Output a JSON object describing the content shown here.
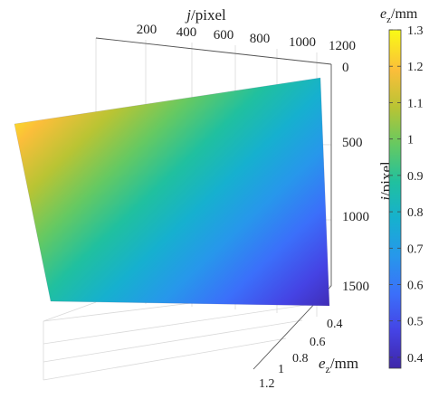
{
  "chart_data": {
    "type": "surface",
    "z_label": "e",
    "z_label_sub": "z",
    "z_label_unit": "/mm",
    "x_axis": {
      "label_var": "j",
      "label_unit": "/pixel",
      "ticks": [
        "200",
        "400",
        "600",
        "800",
        "1000",
        "1200"
      ],
      "range": [
        0,
        1200
      ]
    },
    "y_axis": {
      "label_var": "i",
      "label_unit": "/pixel",
      "ticks": [
        "0",
        "500",
        "1000",
        "1500"
      ],
      "range": [
        0,
        1700
      ]
    },
    "z_axis": {
      "ticks": [
        "0.4",
        "0.6",
        "0.8",
        "1",
        "1.2"
      ],
      "range": [
        0.35,
        1.3
      ]
    },
    "colorbar": {
      "title": "e",
      "title_sub": "z",
      "title_unit": "/mm",
      "ticks": [
        "1.3",
        "1.2",
        "1.1",
        "1",
        "0.9",
        "0.8",
        "0.7",
        "0.6",
        "0.5",
        "0.4"
      ],
      "range": [
        0.37,
        1.3
      ],
      "colormap": "parula"
    },
    "surface_corners": [
      {
        "j": 0,
        "i": 0,
        "e_z": 1.28
      },
      {
        "j": 1200,
        "i": 0,
        "e_z": 0.63
      },
      {
        "j": 0,
        "i": 1700,
        "e_z": 0.9
      },
      {
        "j": 1200,
        "i": 1700,
        "e_z": 0.37
      }
    ],
    "grid": true,
    "colors": {
      "parula_stops": [
        "#3e26a8",
        "#4543e4",
        "#3b6ffa",
        "#2797eb",
        "#16b0cf",
        "#20c09f",
        "#65c962",
        "#b8c434",
        "#fbbe3a",
        "#f9fb15"
      ]
    }
  }
}
